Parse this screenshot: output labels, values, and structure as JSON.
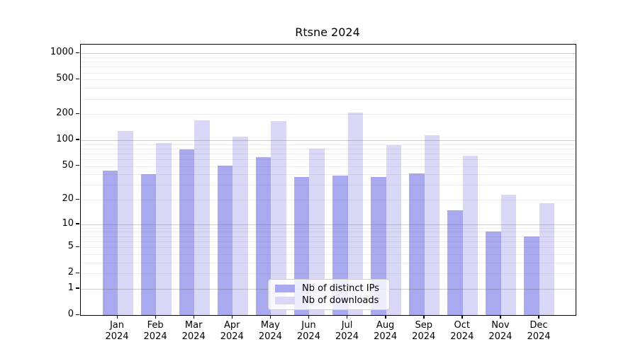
{
  "figure": {
    "background": "#ffffff"
  },
  "chart_data": {
    "type": "bar",
    "title": "Rtsne 2024",
    "x": [
      "Jan",
      "Feb",
      "Mar",
      "Apr",
      "May",
      "Jun",
      "Jul",
      "Aug",
      "Sep",
      "Oct",
      "Nov",
      "Dec"
    ],
    "x_sublabel": "2024",
    "series": [
      {
        "name": "Nb of distinct IPs",
        "color": "#a9a9ef",
        "values": [
          44,
          40,
          78,
          51,
          64,
          37,
          39,
          37,
          41,
          15,
          8,
          7
        ]
      },
      {
        "name": "Nb of downloads",
        "color": "#d9d9f7",
        "values": [
          128,
          92,
          168,
          109,
          167,
          80,
          209,
          88,
          113,
          66,
          23,
          18
        ]
      }
    ],
    "y_scale": "log1p",
    "y_ticks": [
      0,
      1,
      2,
      5,
      10,
      20,
      50,
      100,
      200,
      500,
      1000
    ],
    "ylim": [
      0,
      1100
    ],
    "grid": true,
    "legend_position": "lower center",
    "colors": {
      "grid_major": "#c9c9c9",
      "grid_minor": "#ededed",
      "axis": "#000000",
      "legend_border": "#cccccc"
    }
  }
}
